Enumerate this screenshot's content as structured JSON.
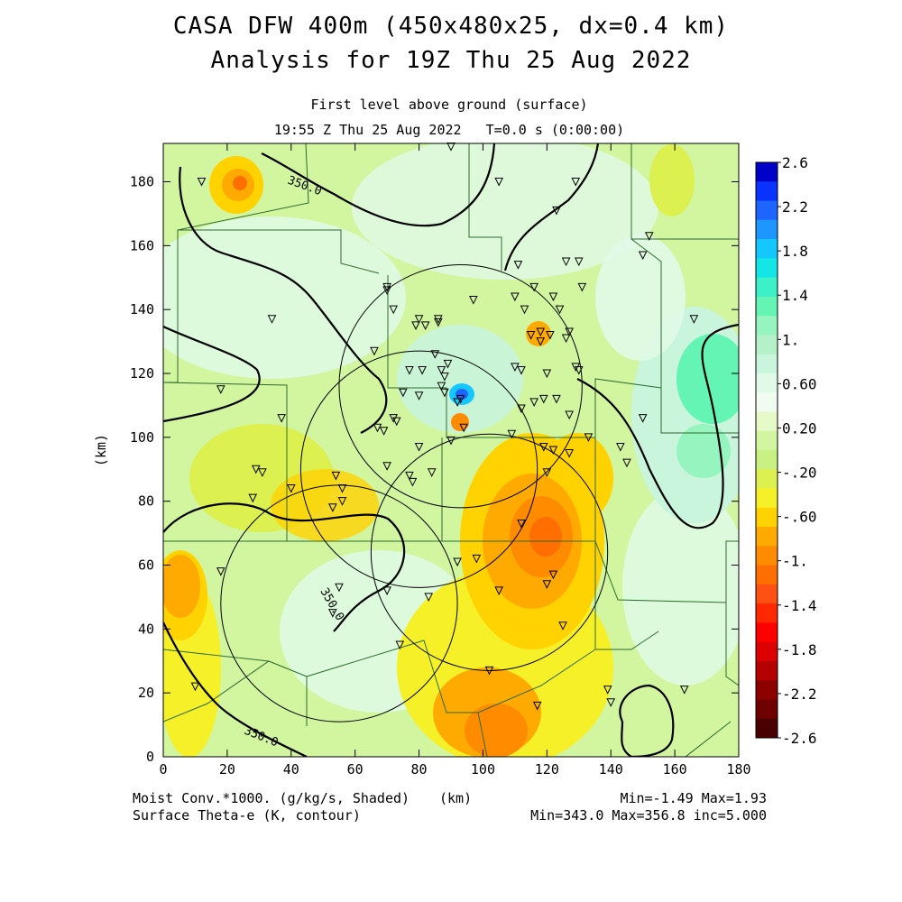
{
  "title": {
    "line1": "CASA DFW 400m (450x480x25, dx=0.4 km)",
    "line2": "Analysis for 19Z Thu 25 Aug 2022"
  },
  "subtitle": {
    "level": "First level above ground (surface)",
    "time": "19:55 Z Thu 25 Aug 2022   T=0.0 s (0:00:00)"
  },
  "axes": {
    "xlabel": "(km)",
    "ylabel": "(km)",
    "x_ticks": [
      "0",
      "20",
      "40",
      "60",
      "80",
      "100",
      "120",
      "140",
      "160",
      "180"
    ],
    "y_ticks": [
      "0",
      "20",
      "40",
      "60",
      "80",
      "100",
      "120",
      "140",
      "160",
      "180"
    ],
    "xlim": [
      0,
      180
    ],
    "ylim": [
      0,
      192
    ]
  },
  "colorbar": {
    "labels": [
      "2.6",
      "2.2",
      "1.8",
      "1.4",
      "1.",
      "0.60",
      "0.20",
      "-.20",
      "-.60",
      "-1.",
      "-1.4",
      "-1.8",
      "-2.2",
      "-2.6"
    ],
    "colors": [
      "#0000c8",
      "#0a32ff",
      "#1e64ff",
      "#1e96ff",
      "#14c8ff",
      "#14e6e6",
      "#3cf0c8",
      "#64f5b4",
      "#96f5be",
      "#b4f0c8",
      "#c8f5dc",
      "#e1fae8",
      "#f0fcf0",
      "#e6fac8",
      "#d2f5a0",
      "#c8f082",
      "#dcf050",
      "#f5f028",
      "#ffd200",
      "#ffaa00",
      "#ff8c00",
      "#ff6e00",
      "#ff5014",
      "#ff2800",
      "#ff0000",
      "#dc0000",
      "#b40000",
      "#8c0000",
      "#6e0000",
      "#4b0000"
    ]
  },
  "footer": {
    "field1": "Moist Conv.*1000. (g/kg/s, Shaded)",
    "field2": "Surface Theta-e (K, contour)",
    "units": "(km)",
    "range1": "Min=-1.49 Max=1.93",
    "range2": "Min=343.0 Max=356.8 inc=5.000"
  },
  "contour_labels": [
    "350.0",
    "350.0",
    "350.0"
  ],
  "map_data": {
    "radar_rings": [
      {
        "cx": 93,
        "cy": 116,
        "r": 38
      },
      {
        "cx": 80,
        "cy": 90,
        "r": 37
      },
      {
        "cx": 102,
        "cy": 64,
        "r": 37
      },
      {
        "cx": 55,
        "cy": 48,
        "r": 37
      }
    ],
    "stations": [
      [
        90,
        191
      ],
      [
        12,
        180
      ],
      [
        105,
        180
      ],
      [
        123,
        171
      ],
      [
        129,
        180
      ],
      [
        152,
        163
      ],
      [
        150,
        157
      ],
      [
        126,
        155
      ],
      [
        130,
        155
      ],
      [
        111,
        154
      ],
      [
        131,
        147
      ],
      [
        70,
        147
      ],
      [
        70,
        146
      ],
      [
        72,
        140
      ],
      [
        97,
        143
      ],
      [
        110,
        144
      ],
      [
        116,
        147
      ],
      [
        122,
        144
      ],
      [
        113,
        140
      ],
      [
        124,
        140
      ],
      [
        34,
        137
      ],
      [
        80,
        137
      ],
      [
        79,
        135
      ],
      [
        86,
        137
      ],
      [
        86,
        136
      ],
      [
        82,
        135
      ],
      [
        127,
        133
      ],
      [
        118,
        133
      ],
      [
        115,
        132
      ],
      [
        121,
        132
      ],
      [
        118,
        130
      ],
      [
        126,
        131
      ],
      [
        166,
        137
      ],
      [
        66,
        127
      ],
      [
        85,
        126
      ],
      [
        110,
        122
      ],
      [
        77,
        121
      ],
      [
        81,
        121
      ],
      [
        87,
        121
      ],
      [
        89,
        123
      ],
      [
        112,
        121
      ],
      [
        120,
        120
      ],
      [
        129,
        122
      ],
      [
        130,
        121
      ],
      [
        88,
        119
      ],
      [
        75,
        114
      ],
      [
        80,
        113
      ],
      [
        87,
        116
      ],
      [
        88,
        114
      ],
      [
        92,
        111
      ],
      [
        93,
        112
      ],
      [
        123,
        112
      ],
      [
        119,
        112
      ],
      [
        116,
        111
      ],
      [
        112,
        109
      ],
      [
        127,
        107
      ],
      [
        72,
        106
      ],
      [
        73,
        105
      ],
      [
        67,
        103
      ],
      [
        69,
        102
      ],
      [
        37,
        106
      ],
      [
        18,
        115
      ],
      [
        150,
        106
      ],
      [
        94,
        103
      ],
      [
        109,
        101
      ],
      [
        90,
        99
      ],
      [
        80,
        97
      ],
      [
        119,
        97
      ],
      [
        122,
        96
      ],
      [
        127,
        95
      ],
      [
        133,
        100
      ],
      [
        143,
        97
      ],
      [
        145,
        92
      ],
      [
        70,
        91
      ],
      [
        29,
        90
      ],
      [
        31,
        89
      ],
      [
        54,
        88
      ],
      [
        77,
        88
      ],
      [
        78,
        86
      ],
      [
        84,
        89
      ],
      [
        120,
        89
      ],
      [
        40,
        84
      ],
      [
        56,
        84
      ],
      [
        53,
        78
      ],
      [
        56,
        80
      ],
      [
        28,
        81
      ],
      [
        112,
        73
      ],
      [
        122,
        57
      ],
      [
        92,
        61
      ],
      [
        98,
        62
      ],
      [
        83,
        50
      ],
      [
        70,
        52
      ],
      [
        53,
        45
      ],
      [
        55,
        53
      ],
      [
        105,
        52
      ],
      [
        120,
        54
      ],
      [
        18,
        58
      ],
      [
        74,
        35
      ],
      [
        125,
        41
      ],
      [
        102,
        27
      ],
      [
        10,
        22
      ],
      [
        139,
        21
      ],
      [
        140,
        17
      ],
      [
        163,
        21
      ],
      [
        117,
        16
      ]
    ]
  }
}
